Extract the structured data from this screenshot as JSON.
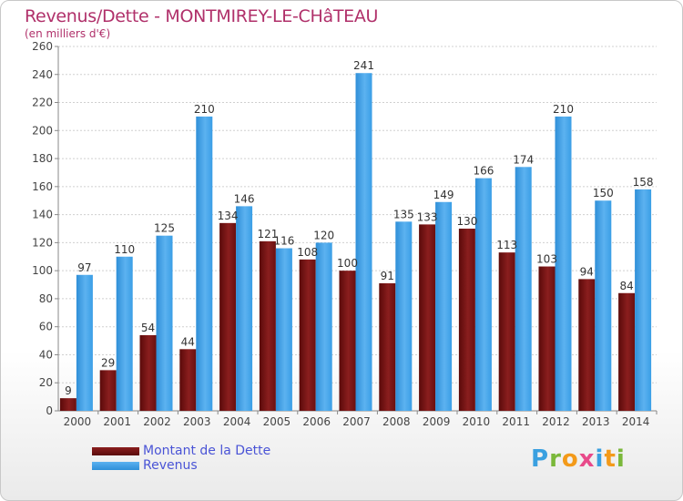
{
  "chart_data": {
    "type": "bar",
    "title": "Revenus/Dette - MONTMIREY-LE-CHâTEAU",
    "subtitle": "(en milliers d'€)",
    "categories": [
      "2000",
      "2001",
      "2002",
      "2003",
      "2004",
      "2005",
      "2006",
      "2007",
      "2008",
      "2009",
      "2010",
      "2011",
      "2012",
      "2013",
      "2014"
    ],
    "series": [
      {
        "name": "Montant de la Dette",
        "color": "#7a1212",
        "values": [
          9,
          29,
          54,
          44,
          134,
          121,
          108,
          100,
          91,
          133,
          130,
          113,
          103,
          94,
          84
        ]
      },
      {
        "name": "Revenus",
        "color": "#3a9ee6",
        "values": [
          97,
          110,
          125,
          210,
          146,
          116,
          120,
          241,
          135,
          149,
          166,
          174,
          210,
          150,
          158
        ]
      }
    ],
    "ylim": [
      0,
      260
    ],
    "yticks": [
      0,
      20,
      40,
      60,
      80,
      100,
      120,
      140,
      160,
      180,
      200,
      220,
      240,
      260
    ],
    "grid": true,
    "legend": "bottom-left"
  },
  "logo": {
    "text": "Proxiti",
    "colors": [
      "#3aa0e0",
      "#7ab83a",
      "#f39a1a",
      "#e84a8a",
      "#3aa0e0",
      "#f39a1a",
      "#7ab83a"
    ]
  }
}
